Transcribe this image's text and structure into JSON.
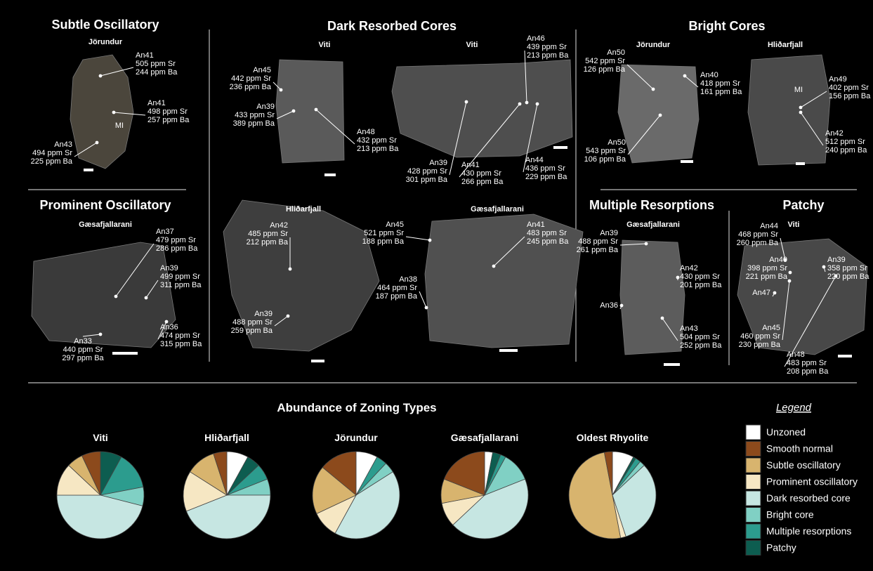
{
  "panels": [
    {
      "title": "Subtle Oscillatory",
      "samples": [
        {
          "name": "Jörundur",
          "inclusion": "MI",
          "annotations": [
            {
              "lines": [
                "An41",
                "505 ppm Sr",
                "244 ppm Ba"
              ]
            },
            {
              "lines": [
                "An41",
                "498 ppm Sr",
                "257 ppm Ba"
              ]
            },
            {
              "lines": [
                "An43",
                "494 ppm Sr",
                "225 ppm Ba"
              ]
            }
          ]
        }
      ]
    },
    {
      "title": "Prominent Oscillatory",
      "samples": [
        {
          "name": "Gæsafjallarani",
          "annotations": [
            {
              "lines": [
                "An37",
                "479 ppm Sr",
                "286 ppm Ba"
              ]
            },
            {
              "lines": [
                "An39",
                "499 ppm Sr",
                "311 ppm Ba"
              ]
            },
            {
              "lines": [
                "An36",
                "474 ppm Sr",
                "315 ppm Ba"
              ]
            },
            {
              "lines": [
                "An33",
                "440 ppm Sr",
                "297 ppm Ba"
              ]
            }
          ]
        }
      ]
    },
    {
      "title": "Dark Resorbed Cores",
      "samples": [
        {
          "name": "Viti",
          "annotations": [
            {
              "lines": [
                "An45",
                "442 ppm Sr",
                "236 ppm Ba"
              ]
            },
            {
              "lines": [
                "An39",
                "433 ppm Sr",
                "389 ppm Ba"
              ]
            },
            {
              "lines": [
                "An48",
                "432 ppm Sr",
                "213 ppm Ba"
              ]
            }
          ]
        },
        {
          "name": "Viti",
          "annotations": [
            {
              "lines": [
                "An39",
                "428 ppm Sr",
                "301 ppm Ba"
              ]
            },
            {
              "lines": [
                "An41",
                "430 ppm Sr",
                "266 ppm Ba"
              ]
            },
            {
              "lines": [
                "An46",
                "439 ppm Sr",
                "213 ppm Ba"
              ]
            },
            {
              "lines": [
                "An44",
                "436 ppm Sr",
                "229 ppm Ba"
              ]
            }
          ]
        },
        {
          "name": "Hliðarfjall",
          "annotations": [
            {
              "lines": [
                "An42",
                "485 ppm Sr",
                "212 ppm Ba"
              ]
            },
            {
              "lines": [
                "An39",
                "488 ppm Sr",
                "259 ppm Ba"
              ]
            }
          ]
        },
        {
          "name": "Gæsafjallarani",
          "annotations": [
            {
              "lines": [
                "An45",
                "521 ppm Sr",
                "188 ppm Ba"
              ]
            },
            {
              "lines": [
                "An41",
                "483 ppm Sr",
                "245 ppm Ba"
              ]
            },
            {
              "lines": [
                "An38",
                "464 ppm Sr",
                "187 ppm Ba"
              ]
            }
          ]
        }
      ]
    },
    {
      "title": "Bright Cores",
      "samples": [
        {
          "name": "Jörundur",
          "annotations": [
            {
              "lines": [
                "An50",
                "542 ppm Sr",
                "126 ppm Ba"
              ]
            },
            {
              "lines": [
                "An40",
                "418 ppm Sr",
                "161 ppm Ba"
              ]
            },
            {
              "lines": [
                "An50",
                "543 ppm Sr",
                "106 ppm Ba"
              ]
            }
          ]
        },
        {
          "name": "Hliðarfjall",
          "inclusion": "MI",
          "annotations": [
            {
              "lines": [
                "An49",
                "402 ppm Sr",
                "156 ppm Ba"
              ]
            },
            {
              "lines": [
                "An42",
                "512 ppm Sr",
                "240 ppm Ba"
              ]
            }
          ]
        }
      ]
    },
    {
      "title": "Multiple Resorptions",
      "samples": [
        {
          "name": "Gæsafjallarani",
          "annotations": [
            {
              "lines": [
                "An39",
                "488 ppm Sr",
                "261 ppm Ba"
              ]
            },
            {
              "lines": [
                "An42",
                "430 ppm Sr",
                "201 ppm Ba"
              ]
            },
            {
              "lines": [
                "An36"
              ]
            },
            {
              "lines": [
                "An43",
                "504 ppm Sr",
                "252 ppm Ba"
              ]
            }
          ]
        }
      ]
    },
    {
      "title": "Patchy",
      "samples": [
        {
          "name": "Viti",
          "annotations": [
            {
              "lines": [
                "An44",
                "468 ppm Sr",
                "260 ppm Ba"
              ]
            },
            {
              "lines": [
                "An40",
                "398 ppm Sr",
                "221 ppm Ba"
              ]
            },
            {
              "lines": [
                "An39",
                "358 ppm Sr",
                "220 ppm Ba"
              ]
            },
            {
              "lines": [
                "An47"
              ]
            },
            {
              "lines": [
                "An45",
                "460 ppm Sr",
                "230 ppm Ba"
              ]
            },
            {
              "lines": [
                "An48",
                "483 ppm Sr",
                "208 ppm Ba"
              ]
            }
          ]
        }
      ]
    }
  ],
  "abundance": {
    "title": "Abundance of Zoning Types",
    "legend": {
      "title": "Legend",
      "items": [
        {
          "name": "Unzoned",
          "color": "#ffffff"
        },
        {
          "name": "Smooth normal",
          "color": "#8c4a1c"
        },
        {
          "name": "Subtle oscillatory",
          "color": "#d8b46e"
        },
        {
          "name": "Prominent oscillatory",
          "color": "#f6e7c3"
        },
        {
          "name": "Dark resorbed core",
          "color": "#c6e6e2"
        },
        {
          "name": "Bright core",
          "color": "#80d0c4"
        },
        {
          "name": "Multiple resorptions",
          "color": "#2c9c8e"
        },
        {
          "name": "Patchy",
          "color": "#0d5d50"
        }
      ]
    }
  },
  "chart_data": [
    {
      "type": "pie",
      "title": "Viti",
      "values": [
        0,
        7,
        6,
        12,
        46,
        7,
        14,
        8
      ]
    },
    {
      "type": "pie",
      "title": "Hliðarfjall",
      "values": [
        8,
        5,
        11,
        15,
        44,
        6,
        6,
        5
      ]
    },
    {
      "type": "pie",
      "title": "Jörundur",
      "values": [
        8,
        14,
        18,
        10,
        42,
        4,
        4,
        0
      ]
    },
    {
      "type": "pie",
      "title": "Gæsafjallarani",
      "values": [
        3,
        19,
        9,
        9,
        44,
        11,
        2,
        3
      ]
    },
    {
      "type": "pie",
      "title": "Oldest Rhyolite",
      "values": [
        8,
        3,
        50,
        2,
        32,
        2,
        2,
        1
      ]
    }
  ]
}
